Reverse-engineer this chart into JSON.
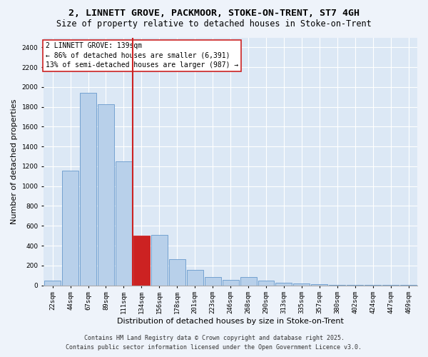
{
  "title_line1": "2, LINNETT GROVE, PACKMOOR, STOKE-ON-TRENT, ST7 4GH",
  "title_line2": "Size of property relative to detached houses in Stoke-on-Trent",
  "xlabel": "Distribution of detached houses by size in Stoke-on-Trent",
  "ylabel": "Number of detached properties",
  "categories": [
    "22sqm",
    "44sqm",
    "67sqm",
    "89sqm",
    "111sqm",
    "134sqm",
    "156sqm",
    "178sqm",
    "201sqm",
    "223sqm",
    "246sqm",
    "268sqm",
    "290sqm",
    "313sqm",
    "335sqm",
    "357sqm",
    "380sqm",
    "402sqm",
    "424sqm",
    "447sqm",
    "469sqm"
  ],
  "values": [
    50,
    1160,
    1940,
    1830,
    1250,
    500,
    510,
    265,
    155,
    80,
    55,
    80,
    50,
    25,
    20,
    10,
    5,
    3,
    2,
    1,
    1
  ],
  "bar_color": "#b8d0ea",
  "bar_edge_color": "#6699cc",
  "highlight_bar_index": 5,
  "highlight_bar_color": "#cc2222",
  "highlight_bar_edge_color": "#cc2222",
  "vline_color": "#cc2222",
  "annotation_text": "2 LINNETT GROVE: 139sqm\n← 86% of detached houses are smaller (6,391)\n13% of semi-detached houses are larger (987) →",
  "annotation_box_color": "#ffffff",
  "annotation_box_edge_color": "#cc2222",
  "ylim": [
    0,
    2500
  ],
  "yticks": [
    0,
    200,
    400,
    600,
    800,
    1000,
    1200,
    1400,
    1600,
    1800,
    2000,
    2200,
    2400
  ],
  "footer_line1": "Contains HM Land Registry data © Crown copyright and database right 2025.",
  "footer_line2": "Contains public sector information licensed under the Open Government Licence v3.0.",
  "background_color": "#eef3fa",
  "plot_bg_color": "#dce8f5",
  "grid_color": "#ffffff",
  "title_fontsize": 9.5,
  "subtitle_fontsize": 8.5,
  "axis_label_fontsize": 8,
  "tick_fontsize": 6.5,
  "annotation_fontsize": 7,
  "footer_fontsize": 6
}
